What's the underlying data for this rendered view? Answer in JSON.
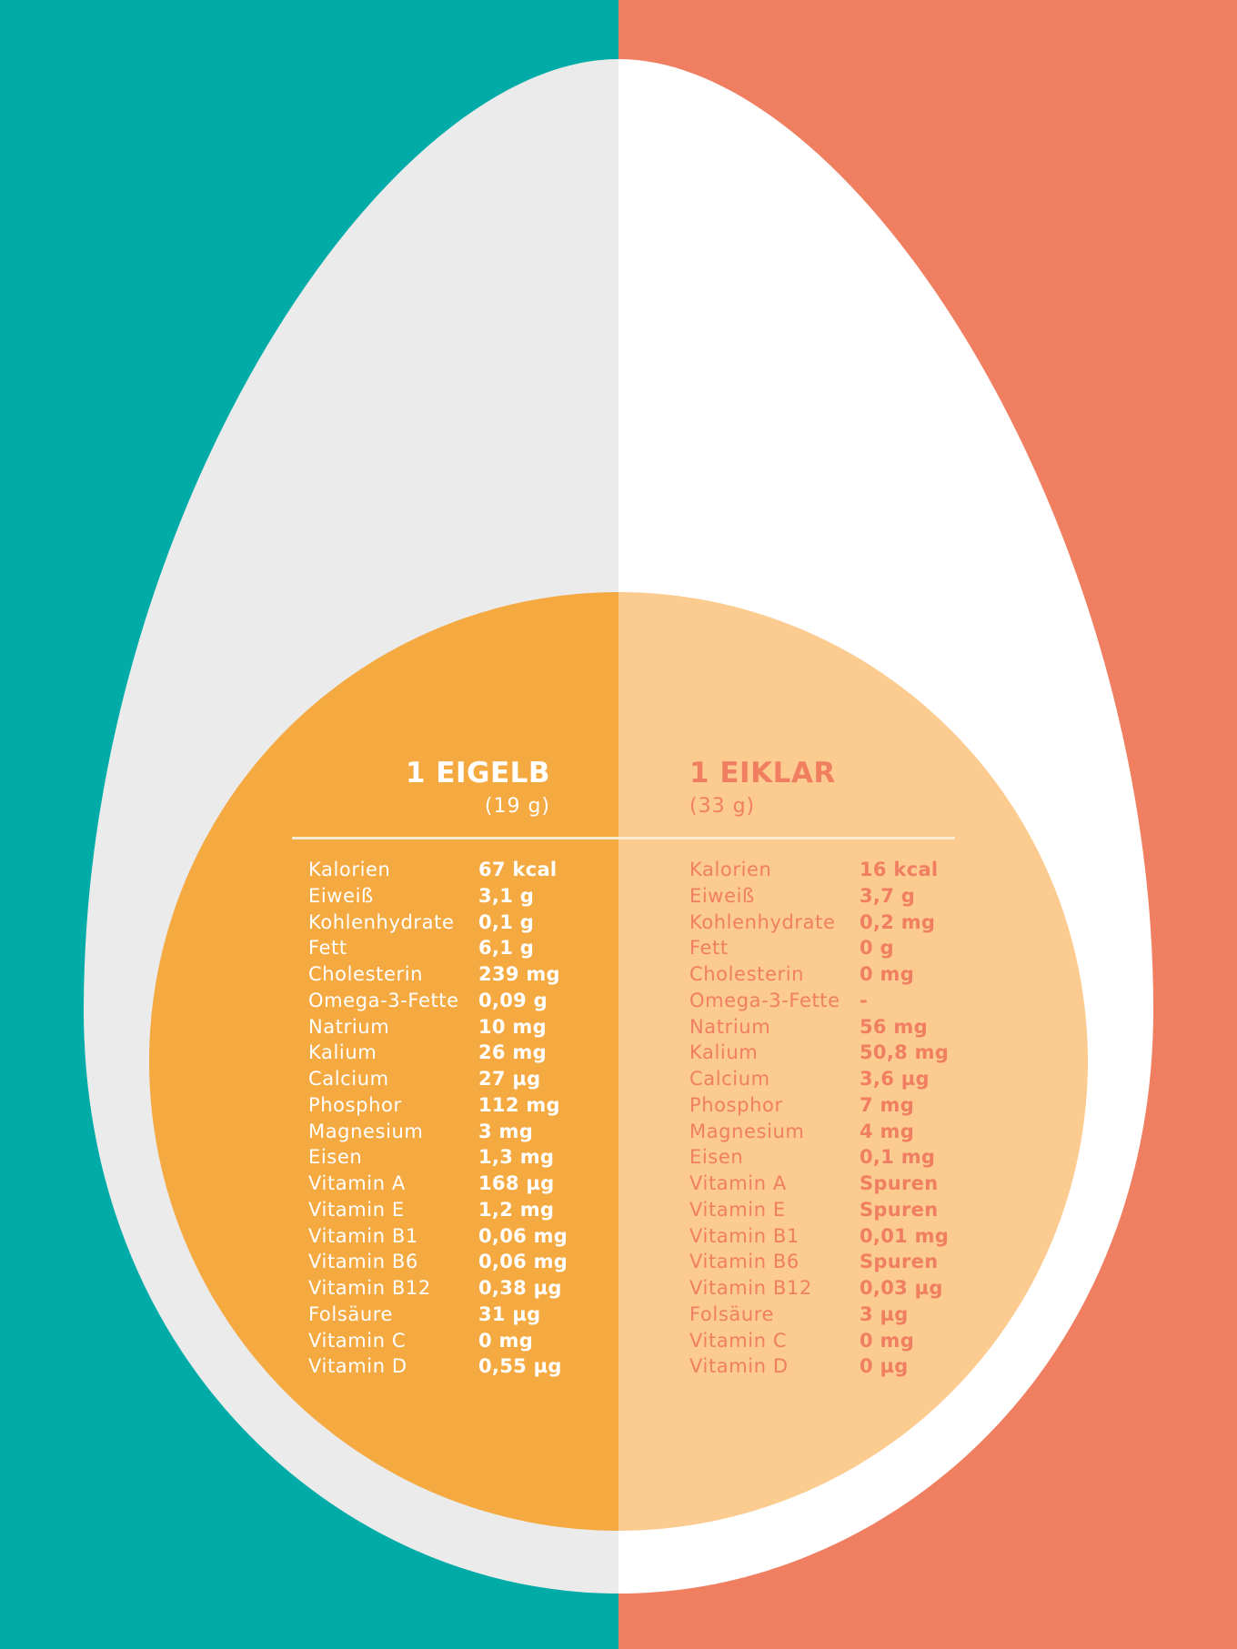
{
  "colors": {
    "background_left": "#01aca8",
    "background_right": "#f07f62",
    "egg_white_left": "#ebebeb",
    "egg_white_right": "#ffffff",
    "yolk_left": "#f5a941",
    "yolk_right": "#fccb90",
    "text_left": "#ffffff",
    "text_right": "#f07f62"
  },
  "yolk_panel": {
    "title": "1 EIGELB",
    "weight": "(19 g)",
    "rows": [
      {
        "label": "Kalorien",
        "value": "67 kcal"
      },
      {
        "label": "Eiweiß",
        "value": "3,1 g"
      },
      {
        "label": "Kohlenhydrate",
        "value": "0,1 g"
      },
      {
        "label": "Fett",
        "value": "6,1 g"
      },
      {
        "label": "Cholesterin",
        "value": "239 mg"
      },
      {
        "label": "Omega-3-Fette",
        "value": "0,09 g"
      },
      {
        "label": "Natrium",
        "value": "10 mg"
      },
      {
        "label": "Kalium",
        "value": "26 mg"
      },
      {
        "label": "Calcium",
        "value": "27 µg"
      },
      {
        "label": "Phosphor",
        "value": "112 mg"
      },
      {
        "label": "Magnesium",
        "value": "3 mg"
      },
      {
        "label": "Eisen",
        "value": "1,3 mg"
      },
      {
        "label": "Vitamin A",
        "value": "168 µg"
      },
      {
        "label": "Vitamin E",
        "value": "1,2 mg"
      },
      {
        "label": "Vitamin B1",
        "value": "0,06 mg"
      },
      {
        "label": "Vitamin B6",
        "value": "0,06 mg"
      },
      {
        "label": "Vitamin B12",
        "value": "0,38 µg"
      },
      {
        "label": "Folsäure",
        "value": "31 µg"
      },
      {
        "label": "Vitamin C",
        "value": "0 mg"
      },
      {
        "label": "Vitamin D",
        "value": "0,55 µg"
      }
    ]
  },
  "white_panel": {
    "title": "1 EIKLAR",
    "weight": "(33 g)",
    "rows": [
      {
        "label": "Kalorien",
        "value": "16 kcal"
      },
      {
        "label": "Eiweiß",
        "value": "3,7 g"
      },
      {
        "label": "Kohlenhydrate",
        "value": "0,2 mg"
      },
      {
        "label": "Fett",
        "value": "0 g"
      },
      {
        "label": "Cholesterin",
        "value": "0 mg"
      },
      {
        "label": "Omega-3-Fette",
        "value": "-"
      },
      {
        "label": "Natrium",
        "value": "56 mg"
      },
      {
        "label": "Kalium",
        "value": "50,8 mg"
      },
      {
        "label": "Calcium",
        "value": "3,6 µg"
      },
      {
        "label": "Phosphor",
        "value": "7 mg"
      },
      {
        "label": "Magnesium",
        "value": "4 mg"
      },
      {
        "label": "Eisen",
        "value": "0,1 mg"
      },
      {
        "label": "Vitamin A",
        "value": "Spuren"
      },
      {
        "label": "Vitamin E",
        "value": "Spuren"
      },
      {
        "label": "Vitamin B1",
        "value": "0,01 mg"
      },
      {
        "label": "Vitamin B6",
        "value": "Spuren"
      },
      {
        "label": "Vitamin B12",
        "value": "0,03 µg"
      },
      {
        "label": "Folsäure",
        "value": "3  µg"
      },
      {
        "label": "Vitamin C",
        "value": "0 mg"
      },
      {
        "label": "Vitamin D",
        "value": "0 µg"
      }
    ]
  }
}
